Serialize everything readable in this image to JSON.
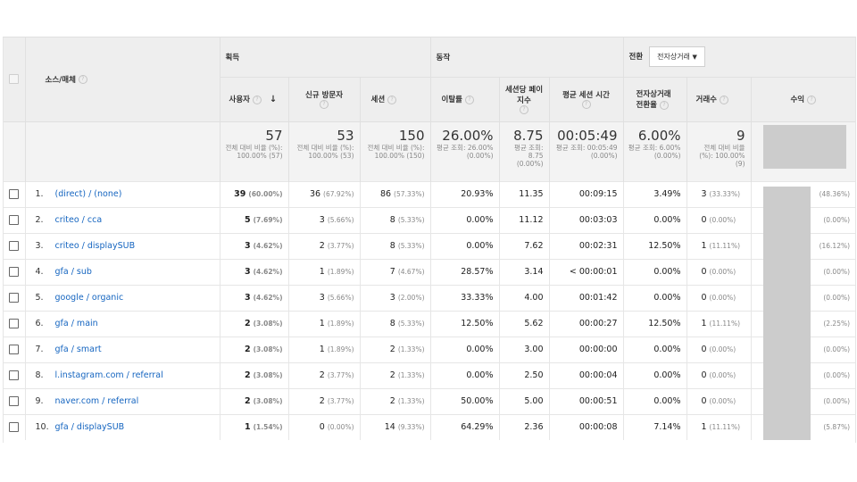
{
  "header": {
    "source_medium": "소스/매체",
    "group_acquisition": "획득",
    "group_behavior": "동작",
    "group_conversion": "전환",
    "conversion_select": "전자상거래",
    "help": "?",
    "sort_arrow": "↓",
    "columns": {
      "users": "사용자",
      "new_users": "신규 방문자",
      "sessions": "세션",
      "bounce": "이탈률",
      "pages_per_session": "세션당 페이지수",
      "avg_duration": "평균 세션 시간",
      "conv_rate": "전자상거래 전환율",
      "transactions": "거래수",
      "revenue": "수익"
    }
  },
  "totals": {
    "users": {
      "value": "57",
      "sub": "전체 대비 비율 (%): 100.00% (57)"
    },
    "new_users": {
      "value": "53",
      "sub": "전체 대비 비율 (%): 100.00% (53)"
    },
    "sessions": {
      "value": "150",
      "sub": "전체 대비 비율 (%): 100.00% (150)"
    },
    "bounce": {
      "value": "26.00%",
      "sub": "평균 조회: 26.00% (0.00%)"
    },
    "pages_per_session": {
      "value": "8.75",
      "sub": "평균 조회: 8.75 (0.00%)"
    },
    "avg_duration": {
      "value": "00:05:49",
      "sub": "평균 조회: 00:05:49 (0.00%)"
    },
    "conv_rate": {
      "value": "6.00%",
      "sub": "평균 조회: 6.00% (0.00%)"
    },
    "transactions": {
      "value": "9",
      "sub": "전체 대비 비율(%): 100.00% (9)"
    }
  },
  "rows": [
    {
      "idx": "1.",
      "source": "(direct) / (none)",
      "users": "39",
      "users_pct": "(60.00%)",
      "new": "36",
      "new_pct": "(67.92%)",
      "sessions": "86",
      "sessions_pct": "(57.33%)",
      "bounce": "20.93%",
      "pps": "11.35",
      "dur": "00:09:15",
      "conv": "3.49%",
      "trans": "3",
      "trans_pct": "(33.33%)",
      "rev_pct": "(48.36%)"
    },
    {
      "idx": "2.",
      "source": "criteo / cca",
      "users": "5",
      "users_pct": "(7.69%)",
      "new": "3",
      "new_pct": "(5.66%)",
      "sessions": "8",
      "sessions_pct": "(5.33%)",
      "bounce": "0.00%",
      "pps": "11.12",
      "dur": "00:03:03",
      "conv": "0.00%",
      "trans": "0",
      "trans_pct": "(0.00%)",
      "rev_pct": "(0.00%)"
    },
    {
      "idx": "3.",
      "source": "criteo / displaySUB",
      "users": "3",
      "users_pct": "(4.62%)",
      "new": "2",
      "new_pct": "(3.77%)",
      "sessions": "8",
      "sessions_pct": "(5.33%)",
      "bounce": "0.00%",
      "pps": "7.62",
      "dur": "00:02:31",
      "conv": "12.50%",
      "trans": "1",
      "trans_pct": "(11.11%)",
      "rev_pct": "(16.12%)"
    },
    {
      "idx": "4.",
      "source": "gfa / sub",
      "users": "3",
      "users_pct": "(4.62%)",
      "new": "1",
      "new_pct": "(1.89%)",
      "sessions": "7",
      "sessions_pct": "(4.67%)",
      "bounce": "28.57%",
      "pps": "3.14",
      "dur": "< 00:00:01",
      "conv": "0.00%",
      "trans": "0",
      "trans_pct": "(0.00%)",
      "rev_pct": "(0.00%)"
    },
    {
      "idx": "5.",
      "source": "google / organic",
      "users": "3",
      "users_pct": "(4.62%)",
      "new": "3",
      "new_pct": "(5.66%)",
      "sessions": "3",
      "sessions_pct": "(2.00%)",
      "bounce": "33.33%",
      "pps": "4.00",
      "dur": "00:01:42",
      "conv": "0.00%",
      "trans": "0",
      "trans_pct": "(0.00%)",
      "rev_pct": "(0.00%)"
    },
    {
      "idx": "6.",
      "source": "gfa / main",
      "users": "2",
      "users_pct": "(3.08%)",
      "new": "1",
      "new_pct": "(1.89%)",
      "sessions": "8",
      "sessions_pct": "(5.33%)",
      "bounce": "12.50%",
      "pps": "5.62",
      "dur": "00:00:27",
      "conv": "12.50%",
      "trans": "1",
      "trans_pct": "(11.11%)",
      "rev_pct": "(2.25%)"
    },
    {
      "idx": "7.",
      "source": "gfa / smart",
      "users": "2",
      "users_pct": "(3.08%)",
      "new": "1",
      "new_pct": "(1.89%)",
      "sessions": "2",
      "sessions_pct": "(1.33%)",
      "bounce": "0.00%",
      "pps": "3.00",
      "dur": "00:00:00",
      "conv": "0.00%",
      "trans": "0",
      "trans_pct": "(0.00%)",
      "rev_pct": "(0.00%)"
    },
    {
      "idx": "8.",
      "source": "l.instagram.com / referral",
      "users": "2",
      "users_pct": "(3.08%)",
      "new": "2",
      "new_pct": "(3.77%)",
      "sessions": "2",
      "sessions_pct": "(1.33%)",
      "bounce": "0.00%",
      "pps": "2.50",
      "dur": "00:00:04",
      "conv": "0.00%",
      "trans": "0",
      "trans_pct": "(0.00%)",
      "rev_pct": "(0.00%)"
    },
    {
      "idx": "9.",
      "source": "naver.com / referral",
      "users": "2",
      "users_pct": "(3.08%)",
      "new": "2",
      "new_pct": "(3.77%)",
      "sessions": "2",
      "sessions_pct": "(1.33%)",
      "bounce": "50.00%",
      "pps": "5.00",
      "dur": "00:00:51",
      "conv": "0.00%",
      "trans": "0",
      "trans_pct": "(0.00%)",
      "rev_pct": "(0.00%)"
    },
    {
      "idx": "10.",
      "source": "gfa / displaySUB",
      "users": "1",
      "users_pct": "(1.54%)",
      "new": "0",
      "new_pct": "(0.00%)",
      "sessions": "14",
      "sessions_pct": "(9.33%)",
      "bounce": "64.29%",
      "pps": "2.36",
      "dur": "00:00:08",
      "conv": "7.14%",
      "trans": "1",
      "trans_pct": "(11.11%)",
      "rev_pct": "(5.87%)"
    }
  ]
}
